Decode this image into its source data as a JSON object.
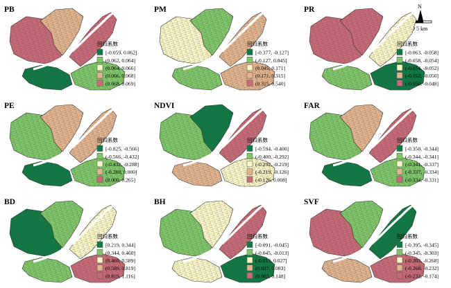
{
  "colors": {
    "class_1": "#0f7a43",
    "class_2": "#7fc768",
    "class_3": "#fbf6c7",
    "class_4": "#e2b48e",
    "class_5": "#c96a77",
    "water": "#ffffff",
    "outline": "#333333"
  },
  "north_label": "N",
  "scale_label": "0     5 km",
  "legend_title": "回归系数",
  "panels": [
    {
      "title": "PB",
      "legend": [
        "[-0.059, 0.062]",
        "(0.062, 0.064]",
        "(0.064, 0.066]",
        "(0.066, 0.068]",
        "(0.068, 0.069]"
      ],
      "region_classes": {
        "west": 5,
        "north_wedge": 4,
        "east_band": 5,
        "south_west": 1,
        "south_east": 2
      }
    },
    {
      "title": "PM",
      "legend": [
        "[-0.377, -0.127]",
        "(-0.127, 0.045]",
        "(0.045, 0.171]",
        "(0.171, 0.315]",
        "(0.315, 0.540]"
      ],
      "region_classes": {
        "west": 3,
        "north_wedge": 2,
        "east_band": 4,
        "south_west": 2,
        "south_east": 4
      }
    },
    {
      "title": "PR",
      "legend": [
        "[-0.063, -0.058]",
        "(-0.058, -0.054]",
        "(-0.054, -0.052]",
        "(-0.052, -0.050]",
        "(-0.050, -0.048]"
      ],
      "region_classes": {
        "west": 5,
        "north_wedge": 5,
        "east_band": 3,
        "south_west": 2,
        "south_east": 1
      }
    },
    {
      "title": "PE",
      "legend": [
        "[-0.825, -0.566]",
        "(-0.566, -0.432]",
        "(-0.432, -0.288]",
        "(-0.288, 0.000]",
        "(0.000, 0.265]"
      ],
      "region_classes": {
        "west": 2,
        "north_wedge": 4,
        "east_band": 4,
        "south_west": 1,
        "south_east": 2
      }
    },
    {
      "title": "NDVI",
      "legend": [
        "[-0.594, -0.400]",
        "(-0.400, -0.292]",
        "(-0.292, -0.219]",
        "(-0.219, -0.126]",
        "(-0.126, 0.008]"
      ],
      "region_classes": {
        "west": 2,
        "north_wedge": 1,
        "east_band": 5,
        "south_west": 4,
        "south_east": 3
      }
    },
    {
      "title": "FAR",
      "legend": [
        "[-0.350, -0.344]",
        "(-0.344, -0.341]",
        "(-0.341, -0.337]",
        "(-0.337, -0.334]",
        "(-0.334, -0.331]"
      ],
      "region_classes": {
        "west": 2,
        "north_wedge": 4,
        "east_band": 5,
        "south_west": 1,
        "south_east": 2
      }
    },
    {
      "title": "BD",
      "legend": [
        "[0.219, 0.344]",
        "(0.344, 0.460]",
        "(0.460, 0.589]",
        "(0.589, 0.819]",
        "(0.819, 1.116]"
      ],
      "region_classes": {
        "west": 1,
        "north_wedge": 2,
        "east_band": 3,
        "south_west": 2,
        "south_east": 5
      }
    },
    {
      "title": "BH",
      "legend": [
        "[-0.091, -0.045]",
        "(-0.045, -0.013]",
        "(-0.013, 0.027]",
        "(0.027, 0.083]",
        "(0.083, 0.148]"
      ],
      "region_classes": {
        "west": 2,
        "north_wedge": 3,
        "east_band": 5,
        "south_west": 3,
        "south_east": 1
      }
    },
    {
      "title": "SVF",
      "legend": [
        "[-0.395, -0.345]",
        "(-0.345, -0.303]",
        "(-0.303, -0.268]",
        "(-0.268, -0.232]",
        "(-0.232, -0.174]"
      ],
      "region_classes": {
        "west": 5,
        "north_wedge": 2,
        "east_band": 1,
        "south_west": 4,
        "south_east": 5
      }
    }
  ]
}
